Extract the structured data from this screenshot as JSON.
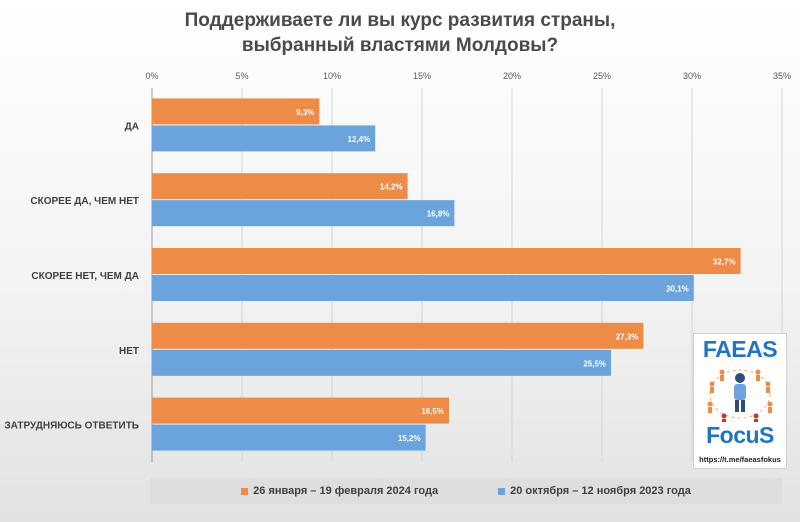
{
  "title_lines": [
    "Поддерживаете ли вы курс развития страны,",
    "выбранный властями Молдовы?"
  ],
  "colors": {
    "series_2024": "#ed8b47",
    "series_2023": "#6ba4dd"
  },
  "logo": {
    "top_text": "FAEAS",
    "bottom_text": "FocuS",
    "link": "https://t.me/faeasfokus"
  },
  "chart_data": {
    "type": "bar",
    "orientation": "horizontal",
    "title": "Поддерживаете ли вы курс развития страны, выбранный властями Молдовы?",
    "categories": [
      "ДА",
      "СКОРЕЕ ДА, ЧЕМ НЕТ",
      "СКОРЕЕ НЕТ, ЧЕМ ДА",
      "НЕТ",
      "ЗАТРУДНЯЮСЬ ОТВЕТИТЬ"
    ],
    "series": [
      {
        "name": "26 января – 19 февраля 2024 года",
        "values": [
          9.3,
          14.2,
          32.7,
          27.3,
          16.5
        ],
        "labels": [
          "9,3%",
          "14,2%",
          "32,7%",
          "27,3%",
          "16,5%"
        ]
      },
      {
        "name": "20 октября – 12 ноября 2023 года",
        "values": [
          12.4,
          16.8,
          30.1,
          25.5,
          15.2
        ],
        "labels": [
          "12,4%",
          "16,8%",
          "30,1%",
          "25,5%",
          "15,2%"
        ]
      }
    ],
    "xlim": [
      0,
      35
    ],
    "xticks": [
      0,
      5,
      10,
      15,
      20,
      25,
      30,
      35
    ],
    "xtick_labels": [
      "0%",
      "5%",
      "10%",
      "15%",
      "20%",
      "25%",
      "30%",
      "35%"
    ],
    "grid": true,
    "legend_position": "bottom"
  }
}
